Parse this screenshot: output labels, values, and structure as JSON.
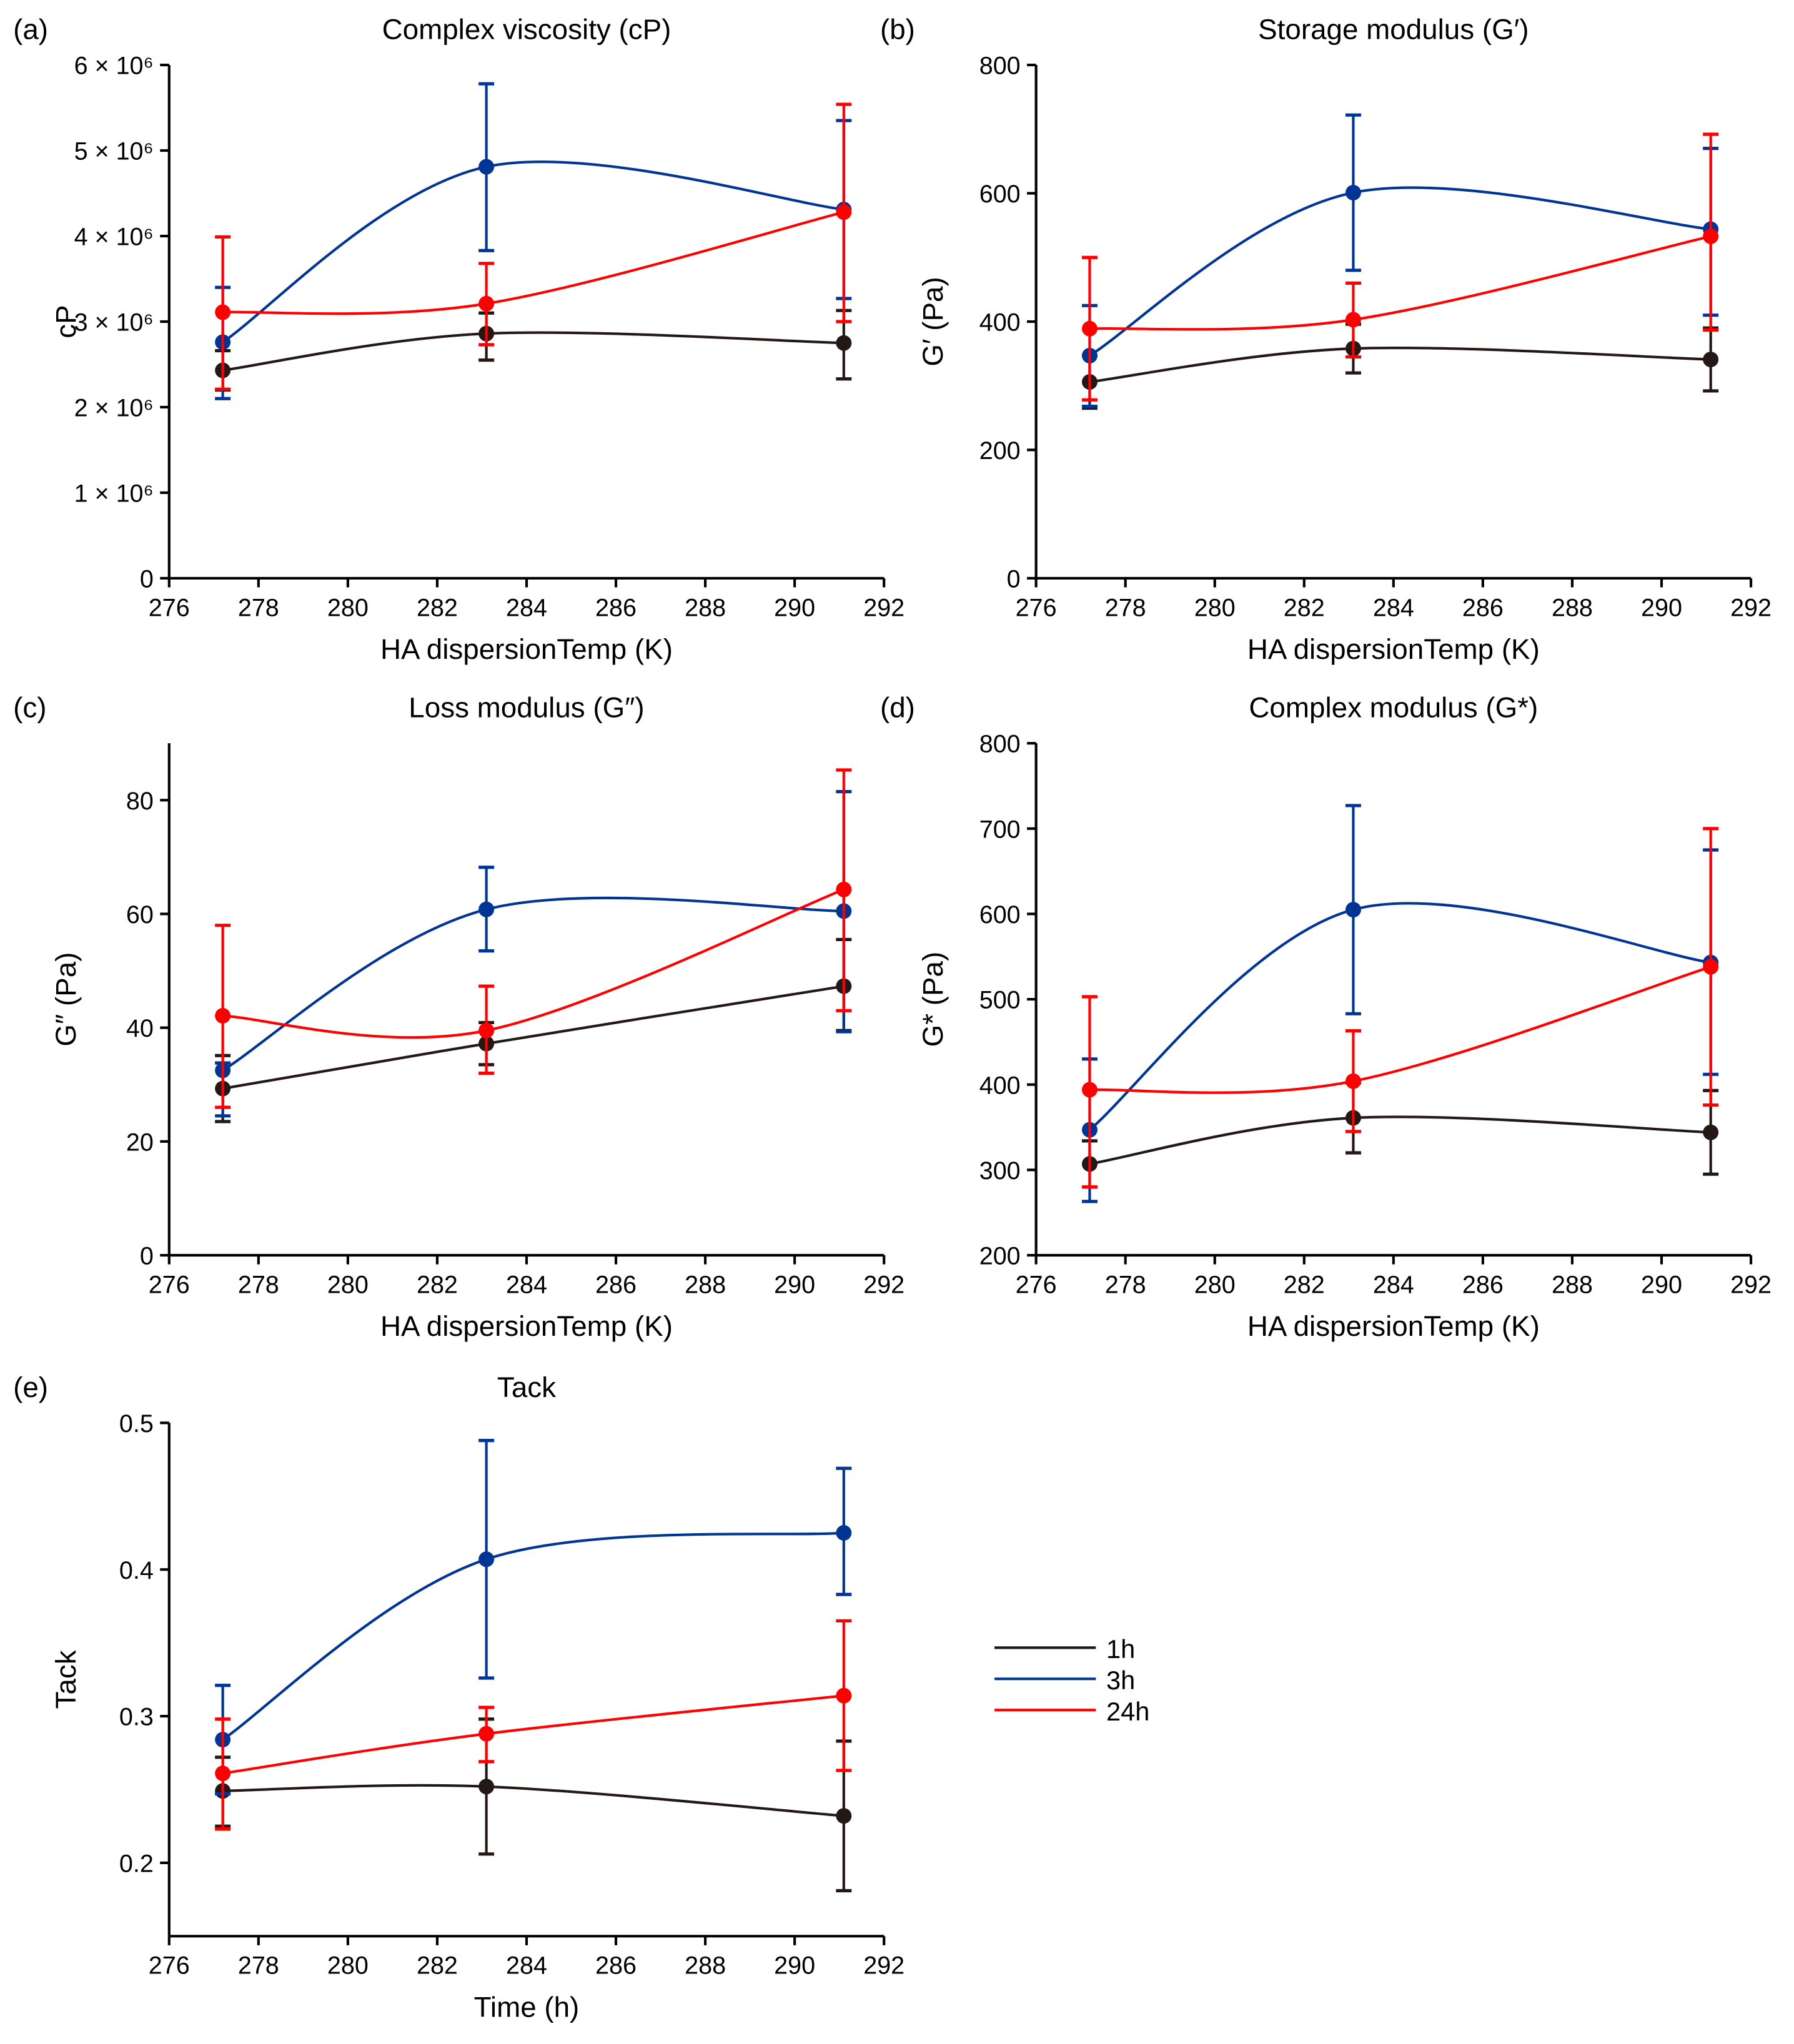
{
  "colors": {
    "1h": "#231815",
    "3h": "#003594",
    "24h": "#ff0000"
  },
  "legend": {
    "entries": [
      "1h",
      "3h",
      "24h"
    ],
    "placement": "right of panel e"
  },
  "chart_data": [
    {
      "panel": "(a)",
      "type": "line",
      "title": "Complex viscosity (cP)",
      "xlabel": "HA dispersionTemp (K)",
      "ylabel": "cP",
      "xlim": [
        276,
        292
      ],
      "ylim": [
        0,
        6000000
      ],
      "xticks": [
        276,
        278,
        280,
        282,
        284,
        286,
        288,
        290,
        292
      ],
      "yticks": [
        0,
        1000000,
        2000000,
        3000000,
        4000000,
        5000000,
        6000000
      ],
      "ytick_labels": [
        "0",
        "1 × 10⁶",
        "2 × 10⁶",
        "3 × 10⁶",
        "4 × 10⁶",
        "5 × 10⁶",
        "6 × 10⁶"
      ],
      "x": [
        277.2,
        283.1,
        291.1
      ],
      "series": [
        {
          "name": "1h",
          "values": [
            2430000,
            2860000,
            2750000
          ],
          "err_low": [
            2200000,
            2550000,
            2330000
          ],
          "err_high": [
            2660000,
            3100000,
            3130000
          ]
        },
        {
          "name": "3h",
          "values": [
            2760000,
            4810000,
            4310000
          ],
          "err_low": [
            2100000,
            3830000,
            3270000
          ],
          "err_high": [
            3400000,
            5780000,
            5350000
          ]
        },
        {
          "name": "24h",
          "values": [
            3110000,
            3210000,
            4280000
          ],
          "err_low": [
            2210000,
            2730000,
            3000000
          ],
          "err_high": [
            3990000,
            3680000,
            5540000
          ]
        }
      ]
    },
    {
      "panel": "(b)",
      "type": "line",
      "title": "Storage modulus (G′)",
      "xlabel": "HA dispersionTemp (K)",
      "ylabel": "G′ (Pa)",
      "xlim": [
        276,
        292
      ],
      "ylim": [
        0,
        800
      ],
      "xticks": [
        276,
        278,
        280,
        282,
        284,
        286,
        288,
        290,
        292
      ],
      "yticks": [
        0,
        200,
        400,
        600,
        800
      ],
      "ytick_labels": [
        "0",
        "200",
        "400",
        "600",
        "800"
      ],
      "x": [
        277.2,
        283.1,
        291.1
      ],
      "series": [
        {
          "name": "1h",
          "values": [
            306,
            358,
            341
          ],
          "err_low": [
            265,
            320,
            292
          ],
          "err_high": [
            347,
            396,
            390
          ]
        },
        {
          "name": "3h",
          "values": [
            347,
            601,
            544
          ],
          "err_low": [
            268,
            480,
            410
          ],
          "err_high": [
            425,
            722,
            670
          ]
        },
        {
          "name": "24h",
          "values": [
            389,
            403,
            533
          ],
          "err_low": [
            278,
            345,
            387
          ],
          "err_high": [
            500,
            460,
            692
          ]
        }
      ]
    },
    {
      "panel": "(c)",
      "type": "line",
      "title": "Loss modulus (G″)",
      "xlabel": "HA dispersionTemp (K)",
      "ylabel": "G″ (Pa)",
      "xlim": [
        276,
        292
      ],
      "ylim": [
        0,
        90
      ],
      "xticks": [
        276,
        278,
        280,
        282,
        284,
        286,
        288,
        290,
        292
      ],
      "yticks": [
        0,
        20,
        40,
        60,
        80
      ],
      "ytick_labels": [
        "0",
        "20",
        "40",
        "60",
        "80"
      ],
      "x": [
        277.2,
        283.1,
        291.1
      ],
      "series": [
        {
          "name": "1h",
          "values": [
            29.3,
            37.2,
            47.3
          ],
          "err_low": [
            23.5,
            33.5,
            39.5
          ],
          "err_high": [
            35.1,
            40.9,
            55.5
          ]
        },
        {
          "name": "3h",
          "values": [
            32.5,
            60.8,
            60.5
          ],
          "err_low": [
            24.5,
            53.5,
            39.3
          ],
          "err_high": [
            33.8,
            68.2,
            81.5
          ]
        },
        {
          "name": "24h",
          "values": [
            42.1,
            39.5,
            64.3
          ],
          "err_low": [
            26.0,
            32.0,
            43.0
          ],
          "err_high": [
            58.0,
            47.3,
            85.3
          ]
        }
      ]
    },
    {
      "panel": "(d)",
      "type": "line",
      "title": "Complex modulus (G*)",
      "xlabel": "HA dispersionTemp (K)",
      "ylabel": "G* (Pa)",
      "xlim": [
        276,
        292
      ],
      "ylim": [
        200,
        800
      ],
      "xticks": [
        276,
        278,
        280,
        282,
        284,
        286,
        288,
        290,
        292
      ],
      "yticks": [
        200,
        300,
        400,
        500,
        600,
        700,
        800
      ],
      "ytick_labels": [
        "200",
        "300",
        "400",
        "500",
        "600",
        "700",
        "800"
      ],
      "x": [
        277.2,
        283.1,
        291.1
      ],
      "series": [
        {
          "name": "1h",
          "values": [
            307,
            361,
            344
          ],
          "err_low": [
            280,
            320,
            295
          ],
          "err_high": [
            334,
            402,
            393
          ]
        },
        {
          "name": "3h",
          "values": [
            347,
            605,
            543
          ],
          "err_low": [
            263,
            483,
            412
          ],
          "err_high": [
            430,
            727,
            675
          ]
        },
        {
          "name": "24h",
          "values": [
            394,
            404,
            538
          ],
          "err_low": [
            280,
            345,
            376
          ],
          "err_high": [
            503,
            463,
            700
          ]
        }
      ]
    },
    {
      "panel": "(e)",
      "type": "line",
      "title": "Tack",
      "xlabel": "Time (h)",
      "ylabel": "Tack",
      "xlim": [
        276,
        292
      ],
      "ylim": [
        0.15,
        0.5
      ],
      "xticks": [
        276,
        278,
        280,
        282,
        284,
        286,
        288,
        290,
        292
      ],
      "yticks": [
        0.2,
        0.3,
        0.4,
        0.5
      ],
      "ytick_labels": [
        "0.2",
        "0.3",
        "0.4",
        "0.5"
      ],
      "x": [
        277.2,
        283.1,
        291.1
      ],
      "series": [
        {
          "name": "1h",
          "values": [
            0.249,
            0.252,
            0.232
          ],
          "err_low": [
            0.225,
            0.206,
            0.181
          ],
          "err_high": [
            0.272,
            0.298,
            0.283
          ]
        },
        {
          "name": "3h",
          "values": [
            0.284,
            0.407,
            0.425
          ],
          "err_low": [
            0.247,
            0.326,
            0.383
          ],
          "err_high": [
            0.321,
            0.488,
            0.469
          ]
        },
        {
          "name": "24h",
          "values": [
            0.261,
            0.288,
            0.314
          ],
          "err_low": [
            0.223,
            0.269,
            0.263
          ],
          "err_high": [
            0.298,
            0.306,
            0.365
          ]
        }
      ]
    }
  ]
}
